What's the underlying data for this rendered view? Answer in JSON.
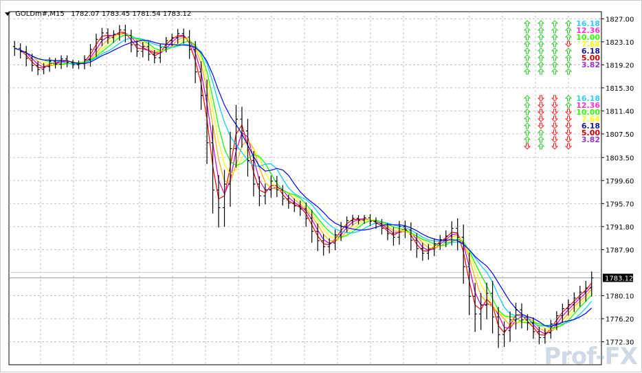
{
  "header": {
    "symbol": "GOLDm#,M15",
    "ohlc": "1782.07 1783.45 1781.54 1783.12"
  },
  "current_price": "1783.12",
  "watermark": "Prof-FX",
  "colors": {
    "background": "#ffffff",
    "grid": "#c0c0c0",
    "candle": "#000000",
    "ma_lines": [
      "#ff0000",
      "#cc00cc",
      "#ffa500",
      "#ffff00",
      "#00ff00",
      "#00c8ff",
      "#0000ff"
    ],
    "arrow_up": "#33cc33",
    "arrow_down": "#ff2222"
  },
  "signal_panels": [
    {
      "name": "upper",
      "columns": [
        {
          "arrows": [
            "up",
            "up",
            "up",
            "up",
            "up",
            "up",
            "up",
            "up"
          ]
        },
        {
          "arrows": [
            "up",
            "up",
            "up",
            "up",
            "up",
            "up",
            "up",
            "up"
          ]
        },
        {
          "arrows": [
            "up",
            "up",
            "up",
            "up",
            "up",
            "up",
            "up",
            "up"
          ]
        },
        {
          "arrows": [
            "up",
            "up",
            "up",
            "down",
            "up",
            "up",
            "up",
            "up"
          ]
        }
      ],
      "levels": [
        {
          "value": "16.18",
          "color": "#33ccff"
        },
        {
          "value": "12.36",
          "color": "#ff33cc"
        },
        {
          "value": "10.00",
          "color": "#33ff00"
        },
        {
          "value": "7.64",
          "color": "#ffff00"
        },
        {
          "value": "6.18",
          "color": "#1a1a99"
        },
        {
          "value": "5.00",
          "color": "#cc0000"
        },
        {
          "value": "3.82",
          "color": "#9933cc"
        }
      ]
    },
    {
      "name": "lower",
      "columns": [
        {
          "arrows": [
            "up",
            "up",
            "up",
            "up",
            "up",
            "up",
            "up",
            "down"
          ]
        },
        {
          "arrows": [
            "down",
            "down",
            "down",
            "down",
            "down",
            "up",
            "up",
            "up"
          ]
        },
        {
          "arrows": [
            "down",
            "down",
            "down",
            "down",
            "down",
            "down",
            "down",
            "down"
          ]
        },
        {
          "arrows": [
            "up",
            "up",
            "down",
            "down",
            "down",
            "down",
            "down",
            "down"
          ]
        }
      ],
      "levels": [
        {
          "value": "16.18",
          "color": "#33ccff"
        },
        {
          "value": "12.36",
          "color": "#ff33cc"
        },
        {
          "value": "10.00",
          "color": "#33ff00"
        },
        {
          "value": "7.64",
          "color": "#ffff00"
        },
        {
          "value": "6.18",
          "color": "#1a1a99"
        },
        {
          "value": "5.00",
          "color": "#cc0000"
        },
        {
          "value": "3.82",
          "color": "#9933cc"
        }
      ]
    }
  ],
  "chart_data": {
    "type": "candlestick",
    "y_ticks": [
      "1827.00",
      "1823.10",
      "1819.20",
      "1815.30",
      "1811.40",
      "1807.50",
      "1803.50",
      "1799.60",
      "1795.70",
      "1791.80",
      "1787.90",
      "1780.10",
      "1776.20",
      "1772.30"
    ],
    "ylim": [
      1768.4,
      1828.2
    ],
    "grid": true,
    "series_close": [
      1822.0,
      1821.4,
      1820.3,
      1819.1,
      1818.4,
      1818.9,
      1819.8,
      1819.3,
      1820.2,
      1819.6,
      1819.2,
      1819.4,
      1820.1,
      1821.8,
      1823.5,
      1824.6,
      1823.8,
      1824.4,
      1825.1,
      1824.2,
      1822.6,
      1821.5,
      1822.3,
      1821.0,
      1820.4,
      1822.1,
      1823.3,
      1823.8,
      1824.5,
      1823.9,
      1821.8,
      1818.0,
      1814.0,
      1806.0,
      1798.0,
      1795.0,
      1799.0,
      1805.0,
      1810.0,
      1808.0,
      1803.0,
      1799.0,
      1797.0,
      1798.0,
      1799.5,
      1798.0,
      1796.5,
      1795.8,
      1795.3,
      1794.8,
      1793.2,
      1791.0,
      1789.4,
      1788.4,
      1789.0,
      1790.4,
      1791.8,
      1792.8,
      1793.2,
      1792.9,
      1793.3,
      1792.7,
      1792.3,
      1791.5,
      1790.6,
      1790.0,
      1791.8,
      1791.2,
      1789.5,
      1788.1,
      1787.3,
      1788.0,
      1788.9,
      1789.6,
      1790.2,
      1791.5,
      1790.0,
      1785.0,
      1780.0,
      1777.0,
      1778.5,
      1780.5,
      1776.5,
      1773.5,
      1774.2,
      1776.0,
      1777.7,
      1776.0,
      1775.5,
      1774.0,
      1773.0,
      1773.8,
      1775.3,
      1776.7,
      1777.9,
      1778.6,
      1779.7,
      1780.7,
      1781.4,
      1783.12
    ],
    "series_wick": [
      1.6,
      1.4,
      1.7,
      1.3,
      1.2,
      1.0,
      1.1,
      0.9,
      1.0,
      1.0,
      0.8,
      0.9,
      1.2,
      1.5,
      1.6,
      1.4,
      1.3,
      1.1,
      1.4,
      1.5,
      1.6,
      1.2,
      1.3,
      1.4,
      1.2,
      1.1,
      1.0,
      1.1,
      1.3,
      1.4,
      2.0,
      2.4,
      3.0,
      4.5,
      5.0,
      4.2,
      4.0,
      4.8,
      4.0,
      3.5,
      3.4,
      2.6,
      2.2,
      1.8,
      1.6,
      1.5,
      1.4,
      1.2,
      1.3,
      1.5,
      1.8,
      2.4,
      2.2,
      1.9,
      1.4,
      1.5,
      1.3,
      1.2,
      1.0,
      0.9,
      0.8,
      1.0,
      1.1,
      1.3,
      1.4,
      1.8,
      1.6,
      1.7,
      2.2,
      2.0,
      1.6,
      1.4,
      1.5,
      1.3,
      1.6,
      2.0,
      2.8,
      3.6,
      4.0,
      3.8,
      3.4,
      3.0,
      3.5,
      2.8,
      2.6,
      2.4,
      2.0,
      1.8,
      1.6,
      1.5,
      1.4,
      1.3,
      1.2,
      1.3,
      1.4,
      1.5,
      1.6,
      1.8,
      2.0,
      1.8
    ]
  }
}
